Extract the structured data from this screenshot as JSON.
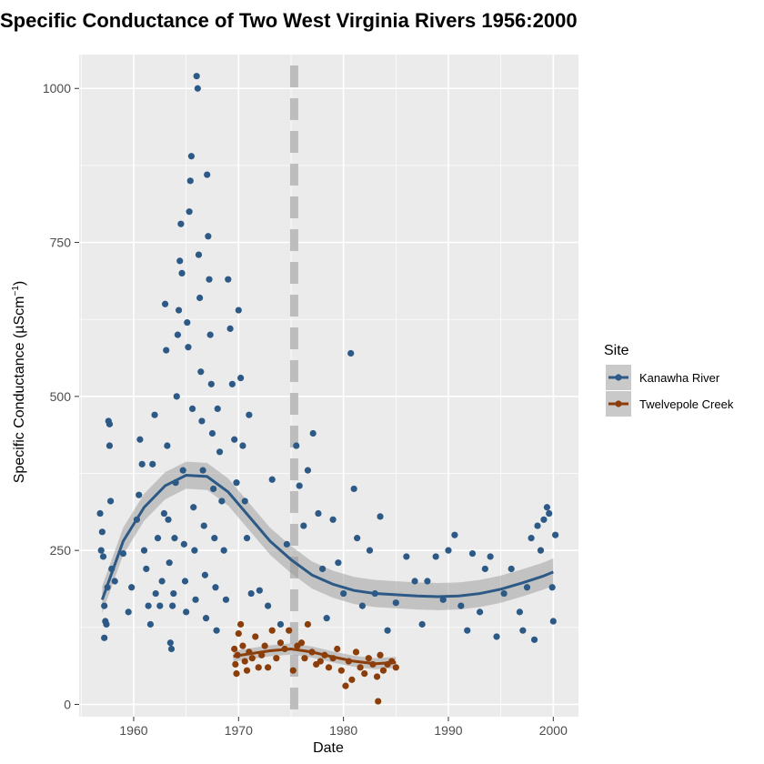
{
  "chart_data": {
    "type": "scatter",
    "title": "Specific Conductance of Two West Virginia Rivers 1956:2000",
    "xlabel": "Date",
    "ylabel_main": "Specific Conductance (µScm",
    "ylabel_sup": "−1",
    "ylabel_close": ")",
    "xlim": [
      1954.8,
      2002.4
    ],
    "ylim": [
      -20,
      1055
    ],
    "x_ticks": [
      1960,
      1970,
      1980,
      1990,
      2000
    ],
    "x_tick_labels": [
      "1960",
      "1970",
      "1980",
      "1990",
      "2000"
    ],
    "y_ticks": [
      0,
      250,
      500,
      750,
      1000
    ],
    "y_tick_labels": [
      "0",
      "250",
      "500",
      "750",
      "1000"
    ],
    "grid": true,
    "reference_line": {
      "x": 1975.3,
      "style": "dashed",
      "color": "#bdbdbd"
    },
    "legend": {
      "title": "Site",
      "position": "right"
    },
    "series": [
      {
        "name": "Kanawha River",
        "color": "#2c5985",
        "points": [
          [
            1956.8,
            310
          ],
          [
            1956.9,
            250
          ],
          [
            1957.0,
            280
          ],
          [
            1957.1,
            240
          ],
          [
            1957.2,
            160
          ],
          [
            1957.3,
            135
          ],
          [
            1957.2,
            108
          ],
          [
            1957.4,
            130
          ],
          [
            1957.5,
            190
          ],
          [
            1957.6,
            460
          ],
          [
            1957.7,
            455
          ],
          [
            1957.7,
            420
          ],
          [
            1957.8,
            330
          ],
          [
            1957.9,
            220
          ],
          [
            1958.2,
            200
          ],
          [
            1959.0,
            245
          ],
          [
            1959.5,
            150
          ],
          [
            1959.8,
            190
          ],
          [
            1960.3,
            300
          ],
          [
            1960.5,
            340
          ],
          [
            1960.6,
            430
          ],
          [
            1960.8,
            390
          ],
          [
            1961.0,
            250
          ],
          [
            1961.2,
            220
          ],
          [
            1961.4,
            160
          ],
          [
            1961.6,
            130
          ],
          [
            1961.8,
            390
          ],
          [
            1962.0,
            470
          ],
          [
            1962.1,
            180
          ],
          [
            1962.3,
            270
          ],
          [
            1962.5,
            160
          ],
          [
            1962.7,
            200
          ],
          [
            1962.9,
            310
          ],
          [
            1963.0,
            650
          ],
          [
            1963.1,
            575
          ],
          [
            1963.2,
            420
          ],
          [
            1963.3,
            300
          ],
          [
            1963.4,
            230
          ],
          [
            1963.5,
            100
          ],
          [
            1963.6,
            90
          ],
          [
            1963.7,
            160
          ],
          [
            1963.8,
            180
          ],
          [
            1963.9,
            270
          ],
          [
            1964.0,
            360
          ],
          [
            1964.1,
            500
          ],
          [
            1964.2,
            600
          ],
          [
            1964.3,
            640
          ],
          [
            1964.4,
            720
          ],
          [
            1964.5,
            780
          ],
          [
            1964.6,
            700
          ],
          [
            1964.7,
            380
          ],
          [
            1964.8,
            260
          ],
          [
            1964.9,
            200
          ],
          [
            1965.0,
            150
          ],
          [
            1965.1,
            620
          ],
          [
            1965.2,
            580
          ],
          [
            1965.3,
            800
          ],
          [
            1965.4,
            850
          ],
          [
            1965.5,
            890
          ],
          [
            1965.6,
            480
          ],
          [
            1965.7,
            320
          ],
          [
            1965.8,
            250
          ],
          [
            1965.9,
            170
          ],
          [
            1966.0,
            1020
          ],
          [
            1966.1,
            1000
          ],
          [
            1966.2,
            730
          ],
          [
            1966.3,
            660
          ],
          [
            1966.4,
            540
          ],
          [
            1966.5,
            460
          ],
          [
            1966.6,
            380
          ],
          [
            1966.7,
            290
          ],
          [
            1966.8,
            210
          ],
          [
            1966.9,
            140
          ],
          [
            1967.0,
            860
          ],
          [
            1967.1,
            760
          ],
          [
            1967.2,
            690
          ],
          [
            1967.3,
            600
          ],
          [
            1967.4,
            520
          ],
          [
            1967.5,
            440
          ],
          [
            1967.6,
            350
          ],
          [
            1967.7,
            270
          ],
          [
            1967.8,
            190
          ],
          [
            1967.9,
            120
          ],
          [
            1968.0,
            480
          ],
          [
            1968.2,
            410
          ],
          [
            1968.4,
            330
          ],
          [
            1968.6,
            250
          ],
          [
            1968.8,
            170
          ],
          [
            1969.0,
            690
          ],
          [
            1969.2,
            610
          ],
          [
            1969.4,
            520
          ],
          [
            1969.6,
            430
          ],
          [
            1969.8,
            360
          ],
          [
            1970.0,
            640
          ],
          [
            1970.2,
            530
          ],
          [
            1970.4,
            420
          ],
          [
            1970.6,
            330
          ],
          [
            1970.8,
            270
          ],
          [
            1971.0,
            470
          ],
          [
            1971.2,
            180
          ],
          [
            1972.0,
            185
          ],
          [
            1972.8,
            160
          ],
          [
            1973.2,
            365
          ],
          [
            1974.0,
            130
          ],
          [
            1974.6,
            260
          ],
          [
            1975.5,
            420
          ],
          [
            1975.8,
            355
          ],
          [
            1976.2,
            290
          ],
          [
            1976.6,
            380
          ],
          [
            1977.1,
            440
          ],
          [
            1977.6,
            310
          ],
          [
            1978.0,
            220
          ],
          [
            1978.4,
            140
          ],
          [
            1979.0,
            300
          ],
          [
            1979.5,
            230
          ],
          [
            1980.0,
            180
          ],
          [
            1980.7,
            570
          ],
          [
            1981.0,
            350
          ],
          [
            1981.3,
            270
          ],
          [
            1981.8,
            160
          ],
          [
            1982.5,
            250
          ],
          [
            1983.0,
            180
          ],
          [
            1983.5,
            305
          ],
          [
            1984.2,
            120
          ],
          [
            1985.0,
            165
          ],
          [
            1986.0,
            240
          ],
          [
            1986.8,
            200
          ],
          [
            1987.5,
            130
          ],
          [
            1988.0,
            200
          ],
          [
            1988.8,
            240
          ],
          [
            1989.5,
            170
          ],
          [
            1990.0,
            250
          ],
          [
            1990.6,
            275
          ],
          [
            1991.2,
            160
          ],
          [
            1991.8,
            120
          ],
          [
            1992.3,
            245
          ],
          [
            1993.0,
            150
          ],
          [
            1993.5,
            220
          ],
          [
            1994.0,
            240
          ],
          [
            1994.6,
            110
          ],
          [
            1995.3,
            180
          ],
          [
            1996.0,
            220
          ],
          [
            1996.8,
            150
          ],
          [
            1997.1,
            120
          ],
          [
            1997.5,
            190
          ],
          [
            1997.9,
            270
          ],
          [
            1998.2,
            105
          ],
          [
            1998.5,
            290
          ],
          [
            1998.8,
            250
          ],
          [
            1999.1,
            300
          ],
          [
            1999.4,
            320
          ],
          [
            1999.6,
            310
          ],
          [
            1999.9,
            190
          ],
          [
            2000.0,
            135
          ],
          [
            2000.2,
            275
          ]
        ],
        "trend": [
          [
            1957,
            170
          ],
          [
            1959,
            265
          ],
          [
            1961,
            320
          ],
          [
            1963,
            355
          ],
          [
            1965,
            372
          ],
          [
            1967,
            370
          ],
          [
            1969,
            345
          ],
          [
            1971,
            305
          ],
          [
            1973,
            265
          ],
          [
            1975,
            235
          ],
          [
            1977,
            210
          ],
          [
            1979,
            195
          ],
          [
            1981,
            185
          ],
          [
            1983,
            180
          ],
          [
            1985,
            178
          ],
          [
            1987,
            176
          ],
          [
            1989,
            175
          ],
          [
            1991,
            176
          ],
          [
            1993,
            180
          ],
          [
            1995,
            187
          ],
          [
            1997,
            197
          ],
          [
            1999,
            208
          ],
          [
            2000,
            215
          ]
        ]
      },
      {
        "name": "Twelvepole Creek",
        "color": "#8b3d0a",
        "points": [
          [
            1969.6,
            90
          ],
          [
            1969.7,
            65
          ],
          [
            1969.8,
            50
          ],
          [
            1969.9,
            80
          ],
          [
            1970.0,
            115
          ],
          [
            1970.2,
            130
          ],
          [
            1970.4,
            95
          ],
          [
            1970.6,
            70
          ],
          [
            1970.8,
            55
          ],
          [
            1971.0,
            85
          ],
          [
            1971.3,
            75
          ],
          [
            1971.6,
            110
          ],
          [
            1971.9,
            60
          ],
          [
            1972.2,
            80
          ],
          [
            1972.5,
            95
          ],
          [
            1972.8,
            60
          ],
          [
            1973.2,
            120
          ],
          [
            1973.6,
            75
          ],
          [
            1974.0,
            100
          ],
          [
            1974.4,
            90
          ],
          [
            1974.8,
            120
          ],
          [
            1975.2,
            55
          ],
          [
            1975.6,
            95
          ],
          [
            1976.0,
            100
          ],
          [
            1976.3,
            75
          ],
          [
            1976.6,
            130
          ],
          [
            1977.0,
            85
          ],
          [
            1977.4,
            65
          ],
          [
            1977.8,
            70
          ],
          [
            1978.2,
            80
          ],
          [
            1978.6,
            60
          ],
          [
            1979.0,
            75
          ],
          [
            1979.4,
            90
          ],
          [
            1979.8,
            55
          ],
          [
            1980.2,
            30
          ],
          [
            1980.5,
            70
          ],
          [
            1980.8,
            40
          ],
          [
            1981.2,
            85
          ],
          [
            1981.6,
            60
          ],
          [
            1982.0,
            50
          ],
          [
            1982.4,
            75
          ],
          [
            1982.8,
            65
          ],
          [
            1983.2,
            45
          ],
          [
            1983.5,
            80
          ],
          [
            1983.8,
            55
          ],
          [
            1984.2,
            65
          ],
          [
            1984.6,
            70
          ],
          [
            1985.0,
            60
          ],
          [
            1983.3,
            5
          ]
        ],
        "trend": [
          [
            1969.5,
            78
          ],
          [
            1971,
            82
          ],
          [
            1973,
            87
          ],
          [
            1975,
            90
          ],
          [
            1977,
            85
          ],
          [
            1979,
            77
          ],
          [
            1981,
            70
          ],
          [
            1983,
            66
          ],
          [
            1985,
            68
          ]
        ]
      }
    ]
  }
}
